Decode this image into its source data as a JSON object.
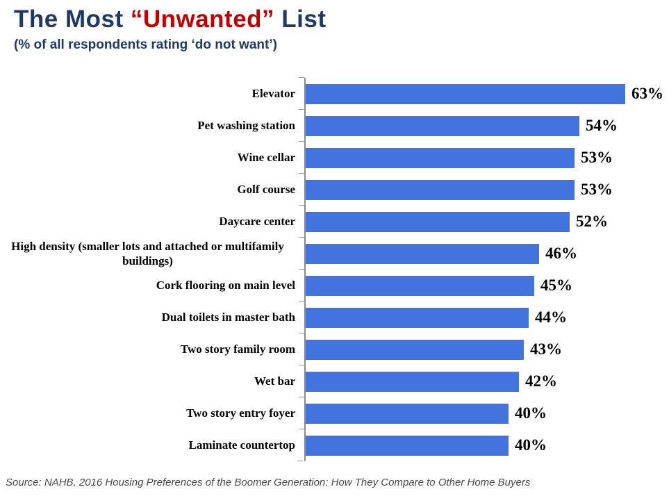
{
  "header": {
    "title_prefix": "The Most ",
    "title_highlight": "“Unwanted”",
    "title_suffix": " List",
    "subtitle": "(% of all respondents rating ‘do not want’)"
  },
  "chart_data": {
    "type": "bar",
    "orientation": "horizontal",
    "title": "The Most “Unwanted” List",
    "subtitle": "(% of all respondents rating ‘do not want’)",
    "categories": [
      "Elevator",
      "Pet washing station",
      "Wine cellar",
      "Golf course",
      "Daycare center",
      "High density (smaller lots and attached or multifamily buildings)",
      "Cork flooring on main level",
      "Dual toilets in master bath",
      "Two story family room",
      "Wet bar",
      "Two story entry foyer",
      "Laminate countertop"
    ],
    "values": [
      63,
      54,
      53,
      53,
      52,
      46,
      45,
      44,
      43,
      42,
      40,
      40
    ],
    "unit": "%",
    "xlim": [
      0,
      70
    ],
    "grid": false,
    "legend": "none",
    "bar_color": "#4374DD",
    "value_label_position": "outside-end"
  },
  "footer": {
    "source": "Source: NAHB, 2016 Housing Preferences of the Boomer Generation: How They Compare to Other Home Buyers"
  },
  "colors": {
    "navy": "#1F3864",
    "red": "#C00000",
    "bar_blue": "#4374DD",
    "axis_gray": "#8C8C8C",
    "tick_gray": "#9A9A9A",
    "source_gray": "#4A4A4A"
  }
}
